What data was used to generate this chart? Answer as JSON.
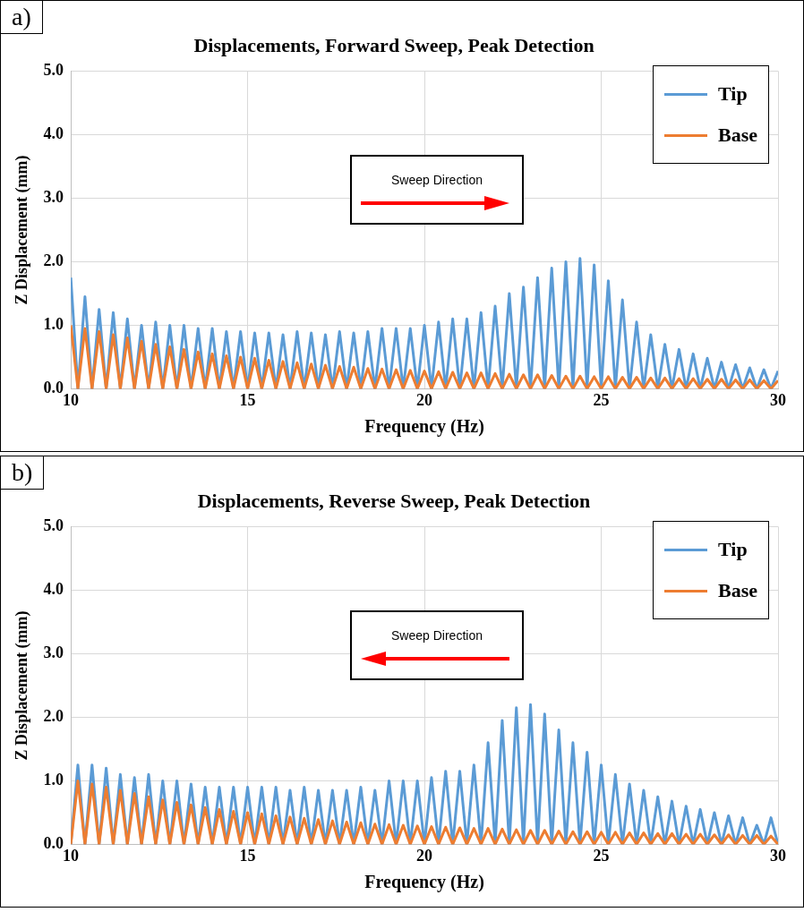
{
  "chart_data": [
    {
      "type": "line",
      "title": "Displacements, Forward Sweep, Peak Detection",
      "xlabel": "Frequency (Hz)",
      "ylabel": "Z Displacement (mm)",
      "annotations": [
        "a)",
        "Sweep Direction"
      ],
      "x": [
        10,
        10.2,
        10.4,
        10.6,
        10.8,
        11,
        11.2,
        11.4,
        11.6,
        11.8,
        12,
        12.2,
        12.4,
        12.6,
        12.8,
        13,
        13.2,
        13.4,
        13.6,
        13.8,
        14,
        14.2,
        14.4,
        14.6,
        14.8,
        15,
        15.2,
        15.4,
        15.6,
        15.8,
        16,
        16.2,
        16.4,
        16.6,
        16.8,
        17,
        17.2,
        17.4,
        17.6,
        17.8,
        18,
        18.2,
        18.4,
        18.6,
        18.8,
        19,
        19.2,
        19.4,
        19.6,
        19.8,
        20,
        20.2,
        20.4,
        20.6,
        20.8,
        21,
        21.2,
        21.4,
        21.6,
        21.8,
        22,
        22.2,
        22.4,
        22.6,
        22.8,
        23,
        23.2,
        23.4,
        23.6,
        23.8,
        24,
        24.2,
        24.4,
        24.6,
        24.8,
        25,
        25.2,
        25.4,
        25.6,
        25.8,
        26,
        26.2,
        26.4,
        26.6,
        26.8,
        27,
        27.2,
        27.4,
        27.6,
        27.8,
        28,
        28.2,
        28.4,
        28.6,
        28.8,
        29,
        29.2,
        29.4,
        29.6,
        29.8,
        30
      ],
      "series": [
        {
          "name": "Tip",
          "color": "#5b9bd5",
          "values": [
            1.75,
            0,
            1.45,
            0,
            1.25,
            0,
            1.2,
            0,
            1.1,
            0,
            1.0,
            0,
            1.05,
            0,
            1.0,
            0,
            1.0,
            0,
            0.95,
            0,
            0.95,
            0,
            0.9,
            0,
            0.9,
            0,
            0.88,
            0,
            0.88,
            0,
            0.85,
            0,
            0.9,
            0,
            0.88,
            0,
            0.85,
            0,
            0.9,
            0,
            0.88,
            0,
            0.9,
            0,
            0.95,
            0,
            0.95,
            0,
            0.95,
            0,
            1.0,
            0,
            1.05,
            0,
            1.1,
            0,
            1.1,
            0,
            1.2,
            0,
            1.3,
            0,
            1.5,
            0,
            1.6,
            0,
            1.75,
            0,
            1.9,
            0,
            2.0,
            0,
            2.05,
            0,
            1.95,
            0,
            1.7,
            0,
            1.4,
            0,
            1.05,
            0,
            0.85,
            0,
            0.7,
            0,
            0.62,
            0,
            0.55,
            0,
            0.48,
            0,
            0.42,
            0,
            0.38,
            0,
            0.33,
            0,
            0.3,
            0,
            0.28
          ]
        },
        {
          "name": "Base",
          "color": "#ed7d31",
          "values": [
            1.0,
            0,
            0.95,
            0,
            0.9,
            0,
            0.85,
            0,
            0.8,
            0,
            0.75,
            0,
            0.7,
            0,
            0.66,
            0,
            0.62,
            0,
            0.58,
            0,
            0.55,
            0,
            0.52,
            0,
            0.5,
            0,
            0.48,
            0,
            0.45,
            0,
            0.43,
            0,
            0.41,
            0,
            0.39,
            0,
            0.37,
            0,
            0.35,
            0,
            0.34,
            0,
            0.32,
            0,
            0.31,
            0,
            0.3,
            0,
            0.29,
            0,
            0.28,
            0,
            0.27,
            0,
            0.26,
            0,
            0.25,
            0,
            0.25,
            0,
            0.24,
            0,
            0.23,
            0,
            0.22,
            0,
            0.22,
            0,
            0.21,
            0,
            0.2,
            0,
            0.2,
            0,
            0.19,
            0,
            0.19,
            0,
            0.18,
            0,
            0.18,
            0,
            0.17,
            0,
            0.17,
            0,
            0.16,
            0,
            0.16,
            0,
            0.15,
            0,
            0.15,
            0,
            0.14,
            0,
            0.14,
            0,
            0.13,
            0,
            0.13
          ]
        }
      ],
      "xlim": [
        10,
        30
      ],
      "xticks": [
        10,
        15,
        20,
        25,
        30
      ],
      "ylim": [
        0,
        5
      ],
      "yticks": [
        {
          "value": 0,
          "label": "0.0"
        },
        {
          "value": 1,
          "label": "1.0"
        },
        {
          "value": 2,
          "label": "2.0"
        },
        {
          "value": 3,
          "label": "3.0"
        },
        {
          "value": 4,
          "label": "4.0"
        },
        {
          "value": 5,
          "label": "5.0"
        }
      ],
      "grid": true,
      "legend": "top right",
      "marker": "none",
      "line_style": "solid"
    },
    {
      "type": "line",
      "title": "Displacements, Reverse Sweep, Peak Detection",
      "xlabel": "Frequency (Hz)",
      "ylabel": "Z Displacement (mm)",
      "annotations": [
        "b)",
        "Sweep Direction"
      ],
      "x": [
        10,
        10.2,
        10.4,
        10.6,
        10.8,
        11,
        11.2,
        11.4,
        11.6,
        11.8,
        12,
        12.2,
        12.4,
        12.6,
        12.8,
        13,
        13.2,
        13.4,
        13.6,
        13.8,
        14,
        14.2,
        14.4,
        14.6,
        14.8,
        15,
        15.2,
        15.4,
        15.6,
        15.8,
        16,
        16.2,
        16.4,
        16.6,
        16.8,
        17,
        17.2,
        17.4,
        17.6,
        17.8,
        18,
        18.2,
        18.4,
        18.6,
        18.8,
        19,
        19.2,
        19.4,
        19.6,
        19.8,
        20,
        20.2,
        20.4,
        20.6,
        20.8,
        21,
        21.2,
        21.4,
        21.6,
        21.8,
        22,
        22.2,
        22.4,
        22.6,
        22.8,
        23,
        23.2,
        23.4,
        23.6,
        23.8,
        24,
        24.2,
        24.4,
        24.6,
        24.8,
        25,
        25.2,
        25.4,
        25.6,
        25.8,
        26,
        26.2,
        26.4,
        26.6,
        26.8,
        27,
        27.2,
        27.4,
        27.6,
        27.8,
        28,
        28.2,
        28.4,
        28.6,
        28.8,
        29,
        29.2,
        29.4,
        29.6,
        29.8,
        30
      ],
      "series": [
        {
          "name": "Tip",
          "color": "#5b9bd5",
          "values": [
            0,
            1.25,
            0,
            1.25,
            0,
            1.2,
            0,
            1.1,
            0,
            1.05,
            0,
            1.1,
            0,
            1.0,
            0,
            1.0,
            0,
            0.95,
            0,
            0.9,
            0,
            0.9,
            0,
            0.9,
            0,
            0.9,
            0,
            0.9,
            0,
            0.9,
            0,
            0.85,
            0,
            0.9,
            0,
            0.85,
            0,
            0.85,
            0,
            0.85,
            0,
            0.9,
            0,
            0.85,
            0,
            1.0,
            0,
            1.0,
            0,
            1.0,
            0,
            1.05,
            0,
            1.15,
            0,
            1.15,
            0,
            1.25,
            0,
            1.6,
            0,
            1.95,
            0,
            2.15,
            0,
            2.2,
            0,
            2.05,
            0,
            1.8,
            0,
            1.6,
            0,
            1.45,
            0,
            1.25,
            0,
            1.1,
            0,
            0.95,
            0,
            0.85,
            0,
            0.75,
            0,
            0.68,
            0,
            0.6,
            0,
            0.55,
            0,
            0.5,
            0,
            0.45,
            0,
            0.42,
            0,
            0.3,
            0,
            0.42,
            0
          ]
        },
        {
          "name": "Base",
          "color": "#ed7d31",
          "values": [
            0,
            1.0,
            0,
            0.95,
            0,
            0.9,
            0,
            0.85,
            0,
            0.8,
            0,
            0.75,
            0,
            0.7,
            0,
            0.66,
            0,
            0.62,
            0,
            0.58,
            0,
            0.55,
            0,
            0.52,
            0,
            0.5,
            0,
            0.48,
            0,
            0.45,
            0,
            0.43,
            0,
            0.41,
            0,
            0.39,
            0,
            0.37,
            0,
            0.35,
            0,
            0.34,
            0,
            0.32,
            0,
            0.31,
            0,
            0.3,
            0,
            0.29,
            0,
            0.28,
            0,
            0.27,
            0,
            0.26,
            0,
            0.25,
            0,
            0.25,
            0,
            0.24,
            0,
            0.23,
            0,
            0.22,
            0,
            0.22,
            0,
            0.21,
            0,
            0.2,
            0,
            0.2,
            0,
            0.19,
            0,
            0.19,
            0,
            0.18,
            0,
            0.18,
            0,
            0.17,
            0,
            0.17,
            0,
            0.16,
            0,
            0.16,
            0,
            0.15,
            0,
            0.15,
            0,
            0.14,
            0,
            0.14,
            0,
            0.13,
            0
          ]
        }
      ],
      "xlim": [
        10,
        30
      ],
      "xticks": [
        10,
        15,
        20,
        25,
        30
      ],
      "ylim": [
        0,
        5
      ],
      "yticks": [
        {
          "value": 0,
          "label": "0.0"
        },
        {
          "value": 1,
          "label": "1.0"
        },
        {
          "value": 2,
          "label": "2.0"
        },
        {
          "value": 3,
          "label": "3.0"
        },
        {
          "value": 4,
          "label": "4.0"
        },
        {
          "value": 5,
          "label": "5.0"
        }
      ],
      "grid": true,
      "legend": "top right",
      "marker": "none",
      "line_style": "solid"
    }
  ]
}
